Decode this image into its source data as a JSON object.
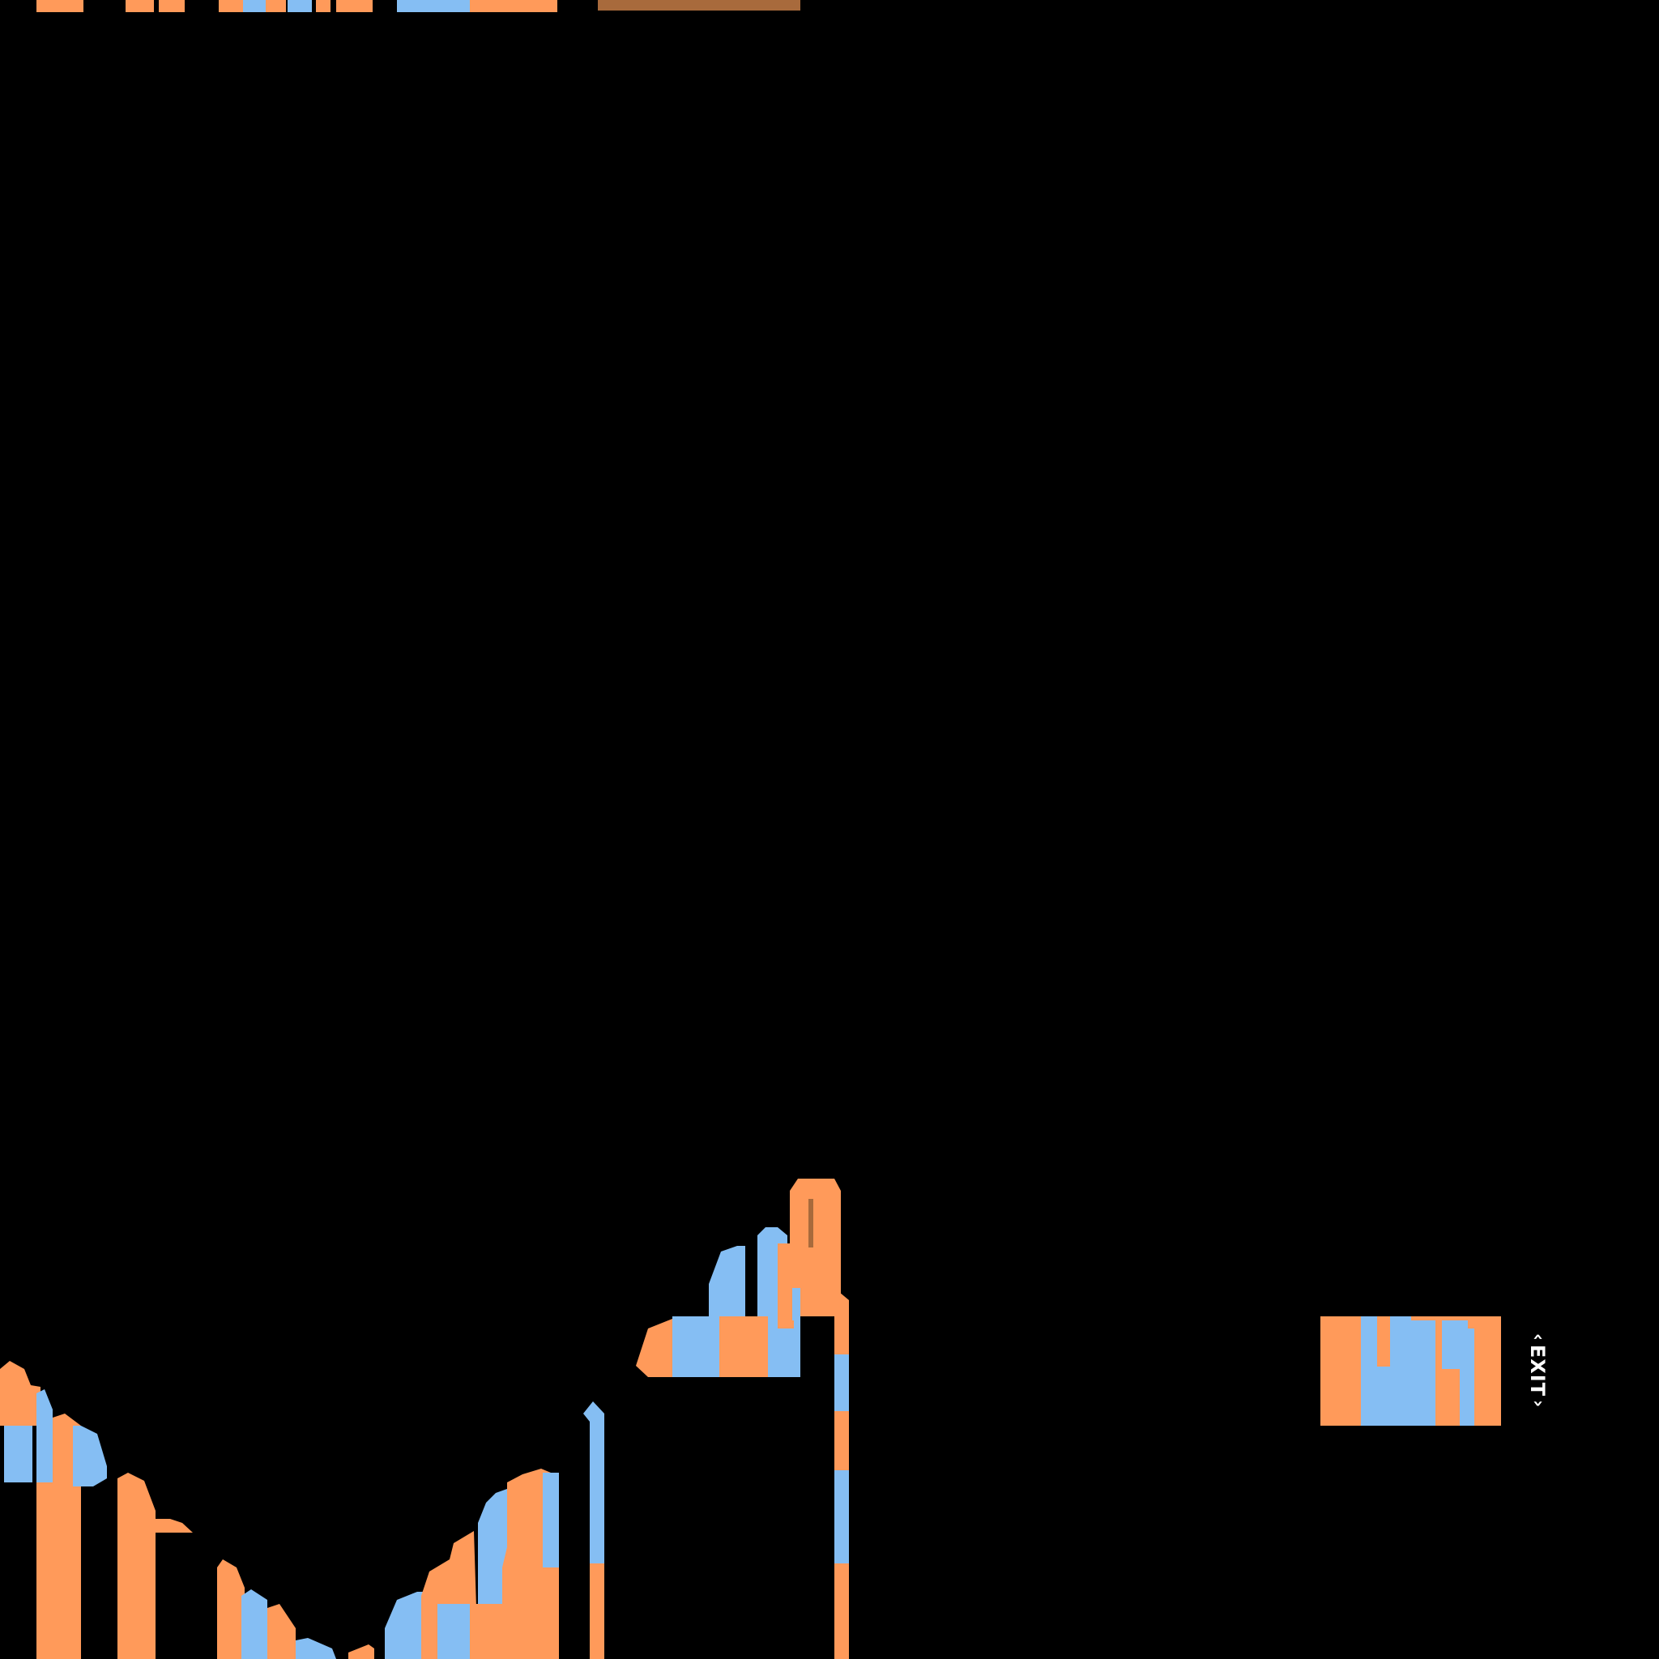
{
  "palette": {
    "background": "#000000",
    "orange": "#FF9A5A",
    "blue": "#85BEF3",
    "brown": "#A86A3C",
    "text": "#FFFFFF"
  },
  "exit_button": {
    "label": "EXIT",
    "icon_before": "chevron-left-icon",
    "icon_after": "chevron-right-icon",
    "icon_before_glyph": "‹",
    "icon_after_glyph": "›"
  }
}
